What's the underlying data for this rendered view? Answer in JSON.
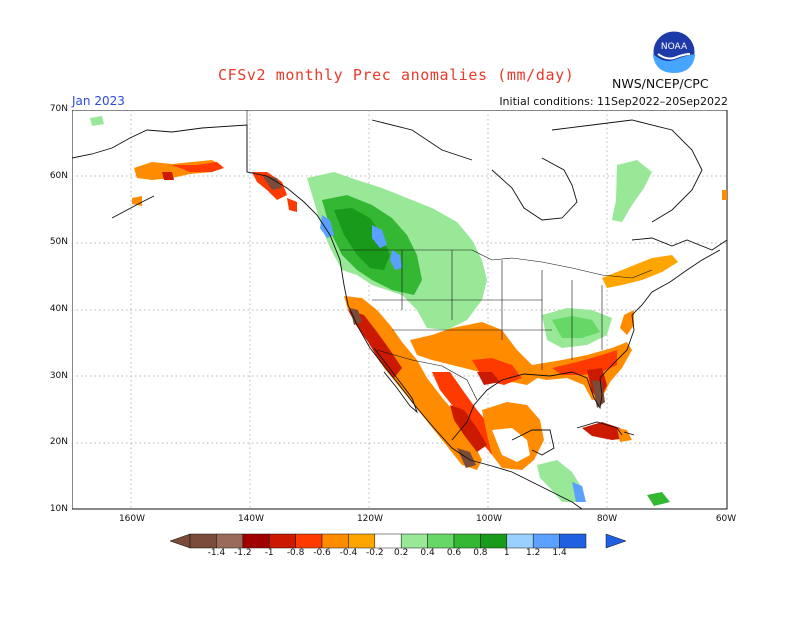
{
  "header": {
    "title": "CFSv2 monthly Prec anomalies (mm/day)",
    "month": "Jan 2023",
    "initial_conditions": "Initial conditions: 11Sep2022–20Sep2022",
    "agency": "NWS/NCEP/CPC",
    "logo_text": "NOAA"
  },
  "axes": {
    "lat_labels": [
      "70N",
      "60N",
      "50N",
      "40N",
      "30N",
      "20N",
      "10N"
    ],
    "lon_labels": [
      "160W",
      "140W",
      "120W",
      "100W",
      "80W",
      "60W"
    ]
  },
  "legend": {
    "labels": [
      "-1.4",
      "-1.2",
      "-1",
      "-0.8",
      "-0.6",
      "-0.4",
      "-0.2",
      "0.2",
      "0.4",
      "0.6",
      "0.8",
      "1",
      "1.2",
      "1.4"
    ],
    "colors": [
      "#7a4a3a",
      "#9a6a5a",
      "#a00000",
      "#cc1a00",
      "#ff3a00",
      "#ff8c00",
      "#ffa500",
      "#ffffff",
      "#98e898",
      "#66d866",
      "#34b834",
      "#1a9a1a",
      "#9ad0ff",
      "#5aa0ff",
      "#2060e0"
    ],
    "colors_semantic": {
      "dry_strong": "#7a4a3a",
      "dry": "#ff8c00",
      "wet": "#34b834",
      "wet_strong": "#2060e0"
    }
  },
  "colors": {
    "title": "#e83a2a",
    "month": "#2b4bd8",
    "map_border": "#111111"
  }
}
